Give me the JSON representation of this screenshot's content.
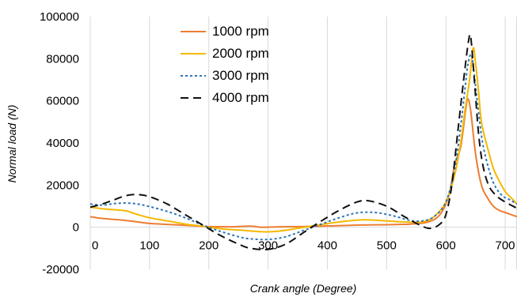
{
  "chart_data": {
    "type": "line",
    "title": "",
    "xlabel": "Crank angle (Degree)",
    "ylabel": "Normal load (N)",
    "xlim": [
      0,
      720
    ],
    "ylim": [
      -20000,
      100000
    ],
    "xticks": [
      0,
      100,
      200,
      300,
      400,
      500,
      600,
      700
    ],
    "xtick_labels": [
      "0",
      "100",
      "200",
      "300",
      "400",
      "500",
      "600",
      "700"
    ],
    "yticks": [
      -20000,
      0,
      20000,
      40000,
      60000,
      80000,
      100000
    ],
    "ytick_labels": [
      "-20000",
      "0",
      "20000",
      "40000",
      "60000",
      "80000",
      "100000"
    ],
    "grid": "vertical",
    "legend_position": "top-left",
    "series": [
      {
        "name": "1000 rpm",
        "color": "#ED7D31",
        "dash": "solid",
        "points": [
          [
            0,
            5000
          ],
          [
            20,
            4200
          ],
          [
            40,
            3700
          ],
          [
            60,
            3200
          ],
          [
            80,
            2500
          ],
          [
            100,
            1800
          ],
          [
            140,
            1200
          ],
          [
            180,
            600
          ],
          [
            200,
            300
          ],
          [
            240,
            200
          ],
          [
            270,
            500
          ],
          [
            290,
            0
          ],
          [
            320,
            200
          ],
          [
            360,
            300
          ],
          [
            400,
            600
          ],
          [
            450,
            1000
          ],
          [
            500,
            1200
          ],
          [
            540,
            1500
          ],
          [
            570,
            2500
          ],
          [
            590,
            6000
          ],
          [
            605,
            15000
          ],
          [
            615,
            30000
          ],
          [
            625,
            38000
          ],
          [
            633,
            55000
          ],
          [
            637,
            61000
          ],
          [
            642,
            55000
          ],
          [
            650,
            35000
          ],
          [
            660,
            20000
          ],
          [
            670,
            14000
          ],
          [
            680,
            10000
          ],
          [
            690,
            8000
          ],
          [
            700,
            7000
          ],
          [
            720,
            5000
          ]
        ]
      },
      {
        "name": "2000 rpm",
        "color": "#F5B800",
        "dash": "solid",
        "points": [
          [
            0,
            9500
          ],
          [
            20,
            8800
          ],
          [
            40,
            8300
          ],
          [
            60,
            7800
          ],
          [
            80,
            6000
          ],
          [
            100,
            4500
          ],
          [
            130,
            3000
          ],
          [
            160,
            1500
          ],
          [
            180,
            800
          ],
          [
            200,
            0
          ],
          [
            230,
            -1000
          ],
          [
            260,
            -1500
          ],
          [
            280,
            -2000
          ],
          [
            300,
            -2200
          ],
          [
            320,
            -1800
          ],
          [
            350,
            -500
          ],
          [
            380,
            800
          ],
          [
            420,
            2500
          ],
          [
            460,
            3500
          ],
          [
            500,
            3000
          ],
          [
            530,
            2500
          ],
          [
            560,
            2500
          ],
          [
            580,
            5000
          ],
          [
            600,
            12000
          ],
          [
            615,
            25000
          ],
          [
            625,
            40000
          ],
          [
            632,
            55000
          ],
          [
            640,
            70000
          ],
          [
            646,
            85000
          ],
          [
            650,
            78000
          ],
          [
            655,
            65000
          ],
          [
            660,
            50000
          ],
          [
            670,
            38000
          ],
          [
            680,
            28000
          ],
          [
            690,
            22000
          ],
          [
            700,
            17000
          ],
          [
            710,
            14000
          ],
          [
            720,
            11000
          ]
        ]
      },
      {
        "name": "3000 rpm",
        "color": "#2E75B6",
        "dash": "3,3",
        "points": [
          [
            0,
            11000
          ],
          [
            20,
            10500
          ],
          [
            40,
            11200
          ],
          [
            60,
            11500
          ],
          [
            80,
            11000
          ],
          [
            100,
            9800
          ],
          [
            130,
            7500
          ],
          [
            160,
            4500
          ],
          [
            190,
            1000
          ],
          [
            220,
            -2000
          ],
          [
            250,
            -4500
          ],
          [
            270,
            -5500
          ],
          [
            300,
            -5800
          ],
          [
            330,
            -4500
          ],
          [
            360,
            -1500
          ],
          [
            390,
            1500
          ],
          [
            420,
            4500
          ],
          [
            450,
            6800
          ],
          [
            480,
            7000
          ],
          [
            510,
            5500
          ],
          [
            540,
            3200
          ],
          [
            560,
            3000
          ],
          [
            580,
            5000
          ],
          [
            600,
            12000
          ],
          [
            615,
            28000
          ],
          [
            625,
            48000
          ],
          [
            632,
            65000
          ],
          [
            637,
            77000
          ],
          [
            643,
            82000
          ],
          [
            648,
            72000
          ],
          [
            655,
            55000
          ],
          [
            662,
            40000
          ],
          [
            672,
            28000
          ],
          [
            682,
            20000
          ],
          [
            695,
            15000
          ],
          [
            708,
            13000
          ],
          [
            720,
            11000
          ]
        ]
      },
      {
        "name": "4000 rpm",
        "color": "#111111",
        "dash": "10,6",
        "points": [
          [
            0,
            9500
          ],
          [
            20,
            11000
          ],
          [
            40,
            13000
          ],
          [
            60,
            15000
          ],
          [
            80,
            15500
          ],
          [
            100,
            14500
          ],
          [
            130,
            11000
          ],
          [
            160,
            6000
          ],
          [
            190,
            1000
          ],
          [
            220,
            -4000
          ],
          [
            250,
            -8000
          ],
          [
            270,
            -10000
          ],
          [
            300,
            -10500
          ],
          [
            330,
            -8000
          ],
          [
            360,
            -2500
          ],
          [
            390,
            3000
          ],
          [
            420,
            8000
          ],
          [
            450,
            12000
          ],
          [
            470,
            12500
          ],
          [
            500,
            10000
          ],
          [
            530,
            5000
          ],
          [
            560,
            500
          ],
          [
            575,
            -500
          ],
          [
            590,
            1500
          ],
          [
            600,
            6000
          ],
          [
            610,
            20000
          ],
          [
            620,
            45000
          ],
          [
            630,
            70000
          ],
          [
            638,
            88000
          ],
          [
            642,
            90000
          ],
          [
            648,
            70000
          ],
          [
            655,
            45000
          ],
          [
            662,
            30000
          ],
          [
            672,
            20000
          ],
          [
            685,
            15000
          ],
          [
            700,
            12000
          ],
          [
            720,
            9000
          ]
        ]
      }
    ]
  }
}
